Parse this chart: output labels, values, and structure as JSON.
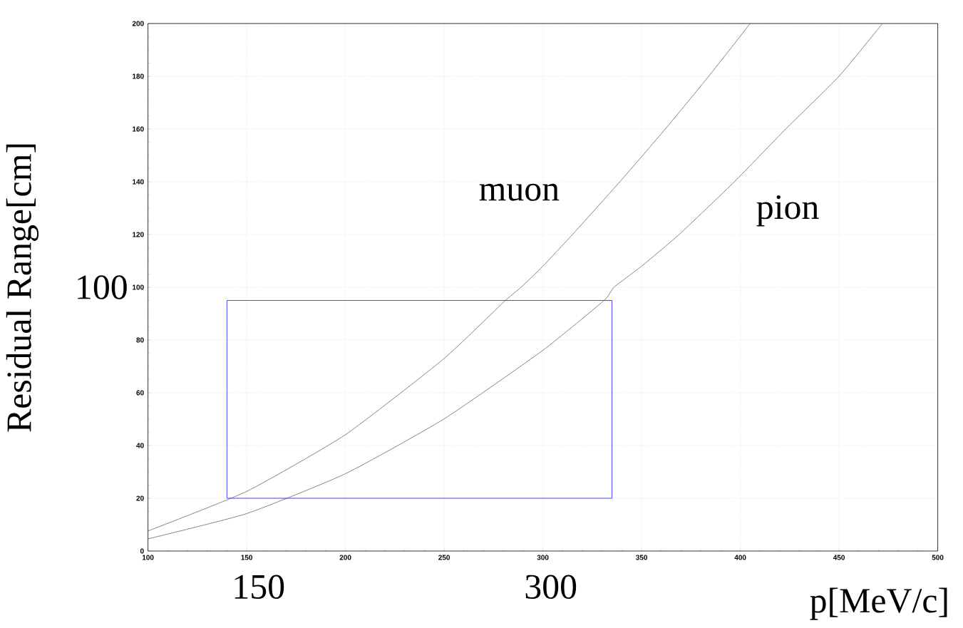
{
  "chart_data": {
    "type": "line",
    "xlabel": "p[MeV/c]",
    "ylabel": "Residual Range[cm]",
    "xlim": [
      100,
      500
    ],
    "ylim": [
      0,
      200
    ],
    "xticks": [
      100,
      150,
      200,
      250,
      300,
      350,
      400,
      450,
      500
    ],
    "yticks": [
      0,
      20,
      40,
      60,
      80,
      100,
      120,
      140,
      160,
      180,
      200
    ],
    "grid": true,
    "series": [
      {
        "name": "muon",
        "color": "#777777",
        "x": [
          100,
          150,
          200,
          250,
          281,
          289,
          300,
          315,
          339,
          362,
          384,
          405
        ],
        "values": [
          7.6,
          22.6,
          44.1,
          73,
          95,
          100,
          108,
          120,
          140,
          160,
          180,
          200
        ]
      },
      {
        "name": "pion",
        "color": "#777777",
        "x": [
          100,
          150,
          200,
          250,
          300,
          331,
          336,
          350,
          369,
          397,
          423,
          450,
          472
        ],
        "values": [
          4.6,
          14.2,
          29.3,
          50.1,
          76.1,
          95,
          100,
          108,
          120,
          140,
          160,
          180,
          200
        ]
      },
      {
        "color": "#3333ff",
        "x": [
          140,
          140,
          335
        ],
        "values": [
          20,
          95,
          95
        ]
      },
      {
        "color": "#3333ff",
        "x": [
          140,
          335,
          335
        ],
        "values": [
          20,
          20,
          95
        ]
      }
    ],
    "annotations": [
      "100",
      "150",
      "300"
    ]
  }
}
